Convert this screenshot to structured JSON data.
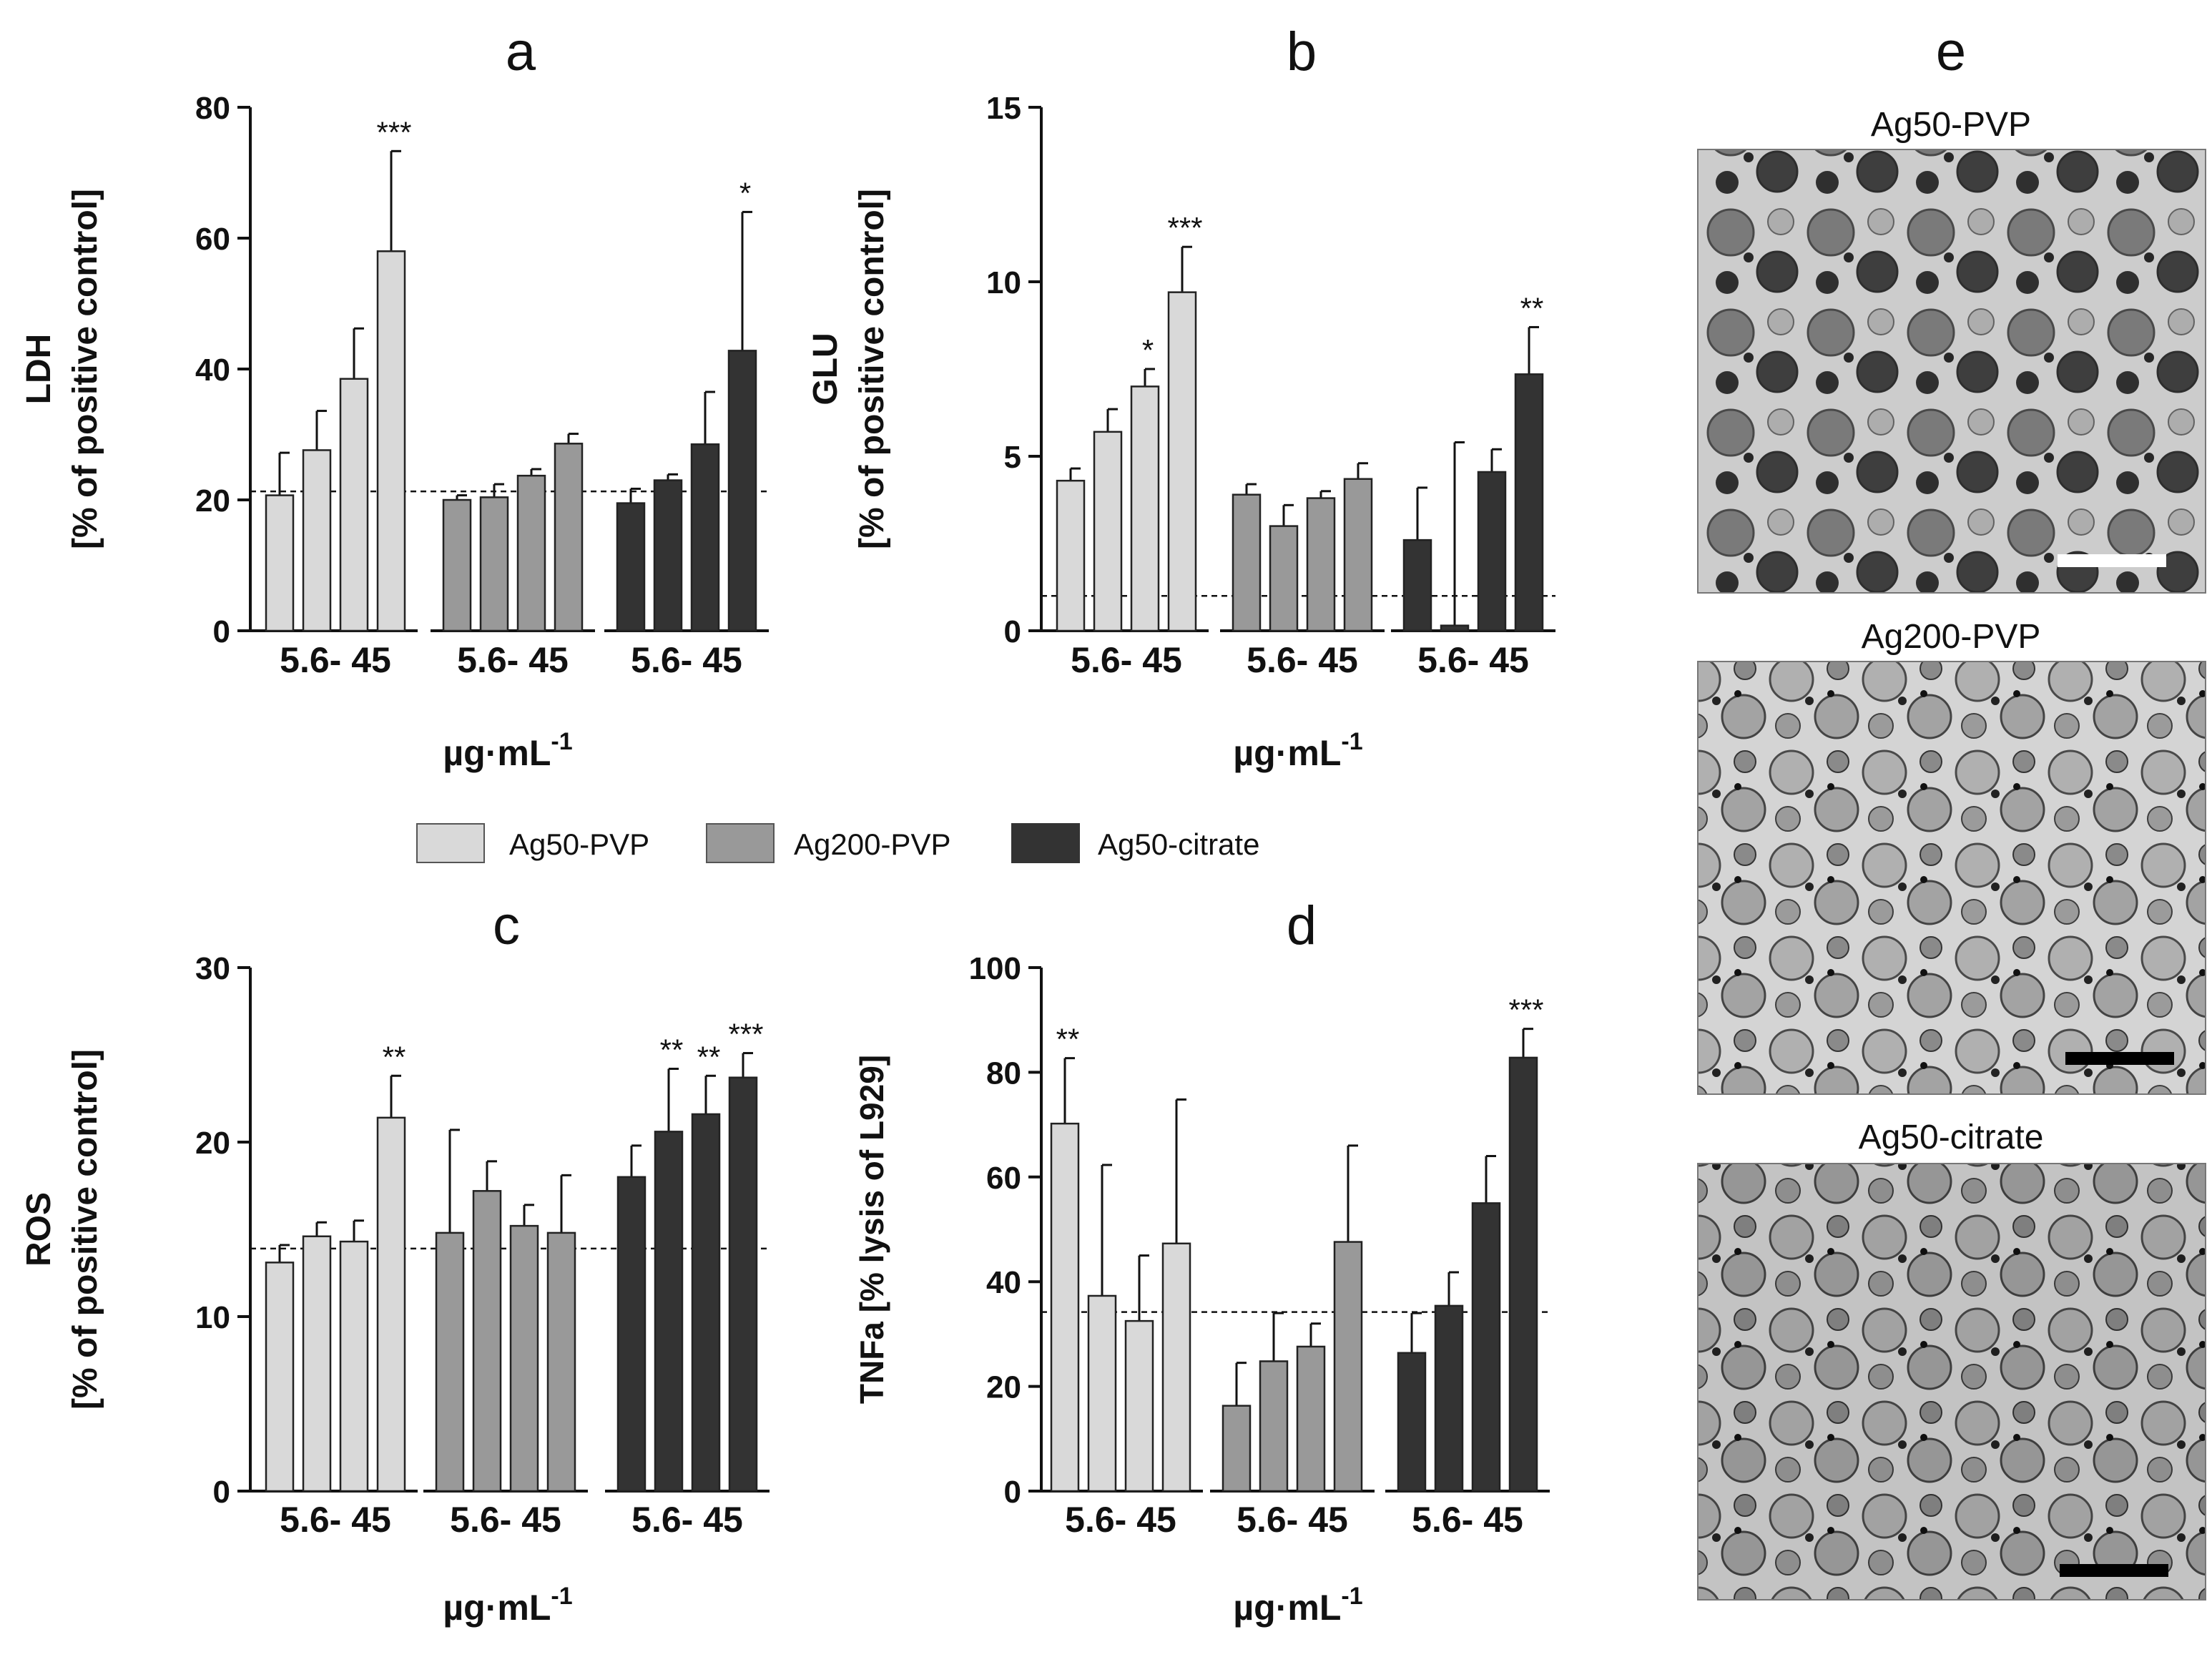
{
  "chart_data": [
    {
      "panel": "a",
      "type": "bar",
      "ylabel_line1": "LDH",
      "ylabel_line2": "[% of positive control]",
      "xlabel": "µg·mL",
      "xlabel_sup": "-1",
      "ylim": [
        0,
        80
      ],
      "yticks": [
        "0",
        "20",
        "40",
        "60",
        "80"
      ],
      "group_tick_label": "5.6- 45",
      "baseline": 21.3,
      "series": [
        {
          "name": "Ag50-PVP",
          "values": [
            20.7,
            27.6,
            38.5,
            58.0
          ],
          "errors": [
            6.5,
            6.0,
            7.7,
            15.3
          ],
          "stars": [
            "",
            "",
            "",
            "***"
          ]
        },
        {
          "name": "Ag200-PVP",
          "values": [
            20.0,
            20.4,
            23.7,
            28.6
          ],
          "errors": [
            0.7,
            2.0,
            1.0,
            1.5
          ],
          "stars": [
            "",
            "",
            "",
            ""
          ]
        },
        {
          "name": "Ag50-citrate",
          "values": [
            19.5,
            23.0,
            28.5,
            42.8
          ],
          "errors": [
            2.2,
            0.9,
            8.0,
            21.2
          ],
          "stars": [
            "",
            "",
            "",
            "*"
          ]
        }
      ]
    },
    {
      "panel": "b",
      "type": "bar",
      "ylabel_line1": "GLU",
      "ylabel_line2": "[% of positive control]",
      "xlabel": "µg·mL",
      "xlabel_sup": "-1",
      "ylim": [
        0,
        15
      ],
      "yticks": [
        "0",
        "5",
        "10",
        "15"
      ],
      "group_tick_label": "5.6- 45",
      "baseline": 1.0,
      "series": [
        {
          "name": "Ag50-PVP",
          "values": [
            4.3,
            5.7,
            7.0,
            9.7
          ],
          "errors": [
            0.35,
            0.65,
            0.5,
            1.3
          ],
          "stars": [
            "",
            "",
            "*",
            "***"
          ]
        },
        {
          "name": "Ag200-PVP",
          "values": [
            3.9,
            3.0,
            3.8,
            4.35
          ],
          "errors": [
            0.3,
            0.6,
            0.2,
            0.45
          ],
          "stars": [
            "",
            "",
            "",
            ""
          ]
        },
        {
          "name": "Ag50-citrate",
          "values": [
            2.6,
            0.15,
            4.55,
            7.35
          ],
          "errors": [
            1.5,
            5.25,
            0.65,
            1.35
          ],
          "stars": [
            "",
            "",
            "",
            "**"
          ]
        }
      ]
    },
    {
      "panel": "c",
      "type": "bar",
      "ylabel_line1": "ROS",
      "ylabel_line2": "[% of positive control]",
      "xlabel": "µg·mL",
      "xlabel_sup": "-1",
      "ylim": [
        0,
        30
      ],
      "yticks": [
        "0",
        "10",
        "20",
        "30"
      ],
      "group_tick_label": "5.6- 45",
      "baseline": 13.9,
      "series": [
        {
          "name": "Ag50-PVP",
          "values": [
            13.1,
            14.6,
            14.3,
            21.4
          ],
          "errors": [
            1.0,
            0.8,
            1.2,
            2.4
          ],
          "stars": [
            "",
            "",
            "",
            "**"
          ]
        },
        {
          "name": "Ag200-PVP",
          "values": [
            14.8,
            17.2,
            15.2,
            14.8
          ],
          "errors": [
            5.9,
            1.7,
            1.2,
            3.3
          ],
          "stars": [
            "",
            "",
            "",
            ""
          ]
        },
        {
          "name": "Ag50-citrate",
          "values": [
            18.0,
            20.6,
            21.6,
            23.7
          ],
          "errors": [
            1.8,
            3.6,
            2.2,
            1.4
          ],
          "stars": [
            "",
            "**",
            "**",
            "***"
          ]
        }
      ]
    },
    {
      "panel": "d",
      "type": "bar",
      "ylabel_line1": "TNFa [% lysis of L929]",
      "ylabel_line2": "",
      "xlabel": "µg·mL",
      "xlabel_sup": "-1",
      "ylim": [
        0,
        100
      ],
      "yticks": [
        "0",
        "20",
        "40",
        "60",
        "80",
        "100"
      ],
      "group_tick_label": "5.6- 45",
      "baseline": 34.2,
      "series": [
        {
          "name": "Ag50-PVP",
          "values": [
            70.2,
            37.3,
            32.5,
            47.3
          ],
          "errors": [
            12.5,
            25.0,
            12.5,
            27.5
          ],
          "stars": [
            "**",
            "",
            "",
            ""
          ]
        },
        {
          "name": "Ag200-PVP",
          "values": [
            16.3,
            24.8,
            27.6,
            47.6
          ],
          "errors": [
            8.2,
            9.2,
            4.4,
            18.4
          ],
          "stars": [
            "",
            "",
            "",
            ""
          ]
        },
        {
          "name": "Ag50-citrate",
          "values": [
            26.4,
            35.4,
            55.0,
            82.8
          ],
          "errors": [
            7.6,
            6.4,
            9.0,
            5.5
          ],
          "stars": [
            "",
            "",
            "",
            "***"
          ]
        }
      ]
    }
  ],
  "legend": [
    {
      "name": "Ag50-PVP",
      "color": "#d9d9d9"
    },
    {
      "name": "Ag200-PVP",
      "color": "#999999"
    },
    {
      "name": "Ag50-citrate",
      "color": "#333333"
    }
  ],
  "images_panel": {
    "letter": "e",
    "items": [
      {
        "caption": "Ag50-PVP",
        "scale_bar_color": "#ffffff"
      },
      {
        "caption": "Ag200-PVP",
        "scale_bar_color": "#000000"
      },
      {
        "caption": "Ag50-citrate",
        "scale_bar_color": "#000000"
      }
    ]
  }
}
